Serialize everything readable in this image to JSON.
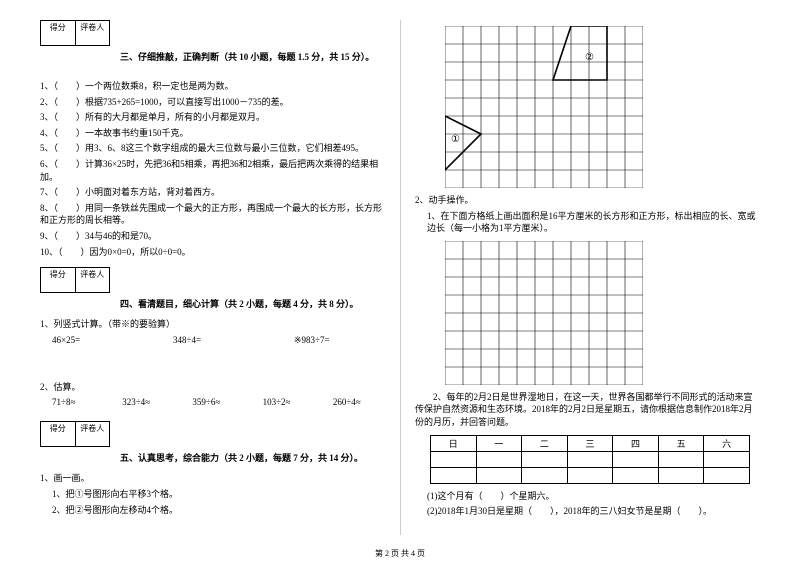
{
  "scorebox": {
    "label_score": "得分",
    "label_grader": "评卷人"
  },
  "section3": {
    "title": "三、仔细推敲，正确判断（共 10 小题，每题 1.5 分，共 15 分）。",
    "items": [
      "1、（　　）一个两位数乘8，积一定也是两为数。",
      "2、（　　）根据735+265=1000，可以直接写出1000－735的差。",
      "3、（　　）所有的大月都是单月，所有的小月都是双月。",
      "4、（　　）一本故事书约重150千克。",
      "5、（　　）用3、6、8这三个数字组成的最大三位数与最小三位数，它们相差495。",
      "6、（　　）计算36×25时，先把36和5相乘，再把36和2相乘，最后把两次乘得的结果相加。",
      "7、（　　）小明面对着东方站，背对着西方。",
      "8、（　　）用同一条铁丝先围成一个最大的正方形，再围成一个最大的长方形，长方形和正方形的周长相等。",
      "9、（　　）34与46的和是70。",
      "10、（　　）因为0×0=0，所以0÷0=0。"
    ]
  },
  "section4": {
    "title": "四、看清题目，细心计算（共 2 小题，每题 4 分，共 8 分）。",
    "q1_label": "1、列竖式计算。（带※的要验算）",
    "q1_items": [
      "46×25=",
      "348÷4=",
      "※983÷7="
    ],
    "q2_label": "2、估算。",
    "q2_items": [
      "71÷8≈",
      "323÷4≈",
      "359÷6≈",
      "103÷2≈",
      "260÷4≈"
    ]
  },
  "section5": {
    "title": "五、认真思考，综合能力（共 2 小题，每题 7 分，共 14 分）。",
    "q1_label": "1、画一画。",
    "q1_sub1": "1、把①号图形向右平移3个格。",
    "q1_sub2": "2、把②号图形向左移动4个格。"
  },
  "right": {
    "q2_label": "2、动手操作。",
    "q2_sub1": "1、在下面方格纸上画出面积是16平方厘米的长方形和正方形，标出相应的长、宽或边长（每一小格为1平方厘米）。",
    "q2_2": "2、每年的2月2日是世界湿地日，在这一天，世界各国都举行不同形式的活动来宣传保护自然资源和生态环境。2018年的2月2日是星期五，请你根据信息制作2018年2月份的月历，并回答问题。",
    "cal_headers": [
      "日",
      "一",
      "二",
      "三",
      "四",
      "五",
      "六"
    ],
    "q2_2_a": "(1)这个月有（　　）个星期六。",
    "q2_2_b": "(2)2018年1月30日是星期（　　），2018年的三八妇女节是星期（　　）。"
  },
  "shapes": {
    "mark1": "①",
    "mark2": "②"
  },
  "footer": "第 2 页 共 4 页",
  "styling": {
    "grid1": {
      "cols": 11,
      "rows": 9,
      "cell": 18,
      "stroke": "#000"
    },
    "grid2": {
      "cols": 11,
      "rows": 8,
      "cell": 18,
      "stroke": "#000"
    },
    "shape_fill": "none",
    "shape_stroke": "#000",
    "font_family": "SimSun",
    "base_fontsize": 9,
    "bg": "#ffffff"
  }
}
